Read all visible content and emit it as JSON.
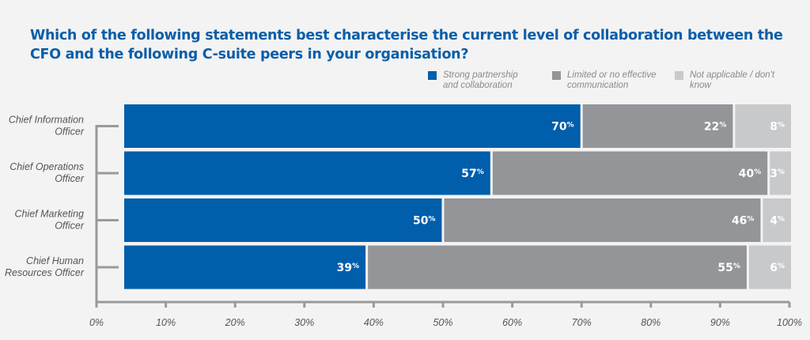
{
  "chart_data": {
    "type": "bar",
    "orientation": "horizontal",
    "stacked": true,
    "title": "Which of the following statements best characterise the current level of collaboration between the CFO and the following C-suite peers in your organisation?",
    "categories": [
      "Chief Information Officer",
      "Chief Operations Officer",
      "Chief Marketing Officer",
      "Chief Human Resources Officer"
    ],
    "series": [
      {
        "name": "Strong partnership and collaboration",
        "values": [
          70,
          57,
          50,
          39
        ],
        "color": "#005eab"
      },
      {
        "name": "Limited or no effective communication",
        "values": [
          22,
          40,
          46,
          55
        ],
        "color": "#939598"
      },
      {
        "name": "Not applicable / don't know",
        "values": [
          8,
          3,
          4,
          6
        ],
        "color": "#c8c9cb"
      }
    ],
    "xlim": [
      0,
      100
    ],
    "xticks": [
      "0%",
      "10%",
      "20%",
      "30%",
      "40%",
      "50%",
      "60%",
      "70%",
      "80%",
      "90%",
      "100%"
    ],
    "value_suffix": "%",
    "grid": false,
    "legend_position": "top-right"
  },
  "legend": [
    {
      "label": "Strong partnership\nand collaboration",
      "color": "#005eab"
    },
    {
      "label": "Limited or no effective\ncommunication",
      "color": "#939598"
    },
    {
      "label": "Not applicable / don't\nknow",
      "color": "#c8c9cb"
    }
  ],
  "category_labels": [
    [
      "Chief Information",
      "Officer"
    ],
    [
      "Chief Operations",
      "Officer"
    ],
    [
      "Chief Marketing",
      "Officer"
    ],
    [
      "Chief Human",
      "Resources Officer"
    ]
  ],
  "colors": {
    "title": "#0a5ea8",
    "axis": "#9a9a9a",
    "background": "#f3f3f3"
  }
}
